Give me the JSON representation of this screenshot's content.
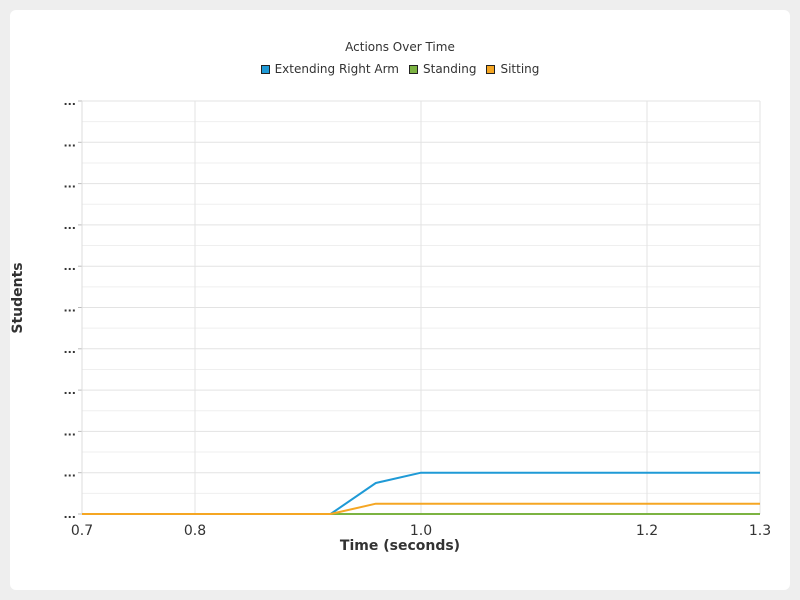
{
  "chart_data": {
    "type": "line",
    "title": "Actions Over Time",
    "xlabel": "Time (seconds)",
    "ylabel": "Students",
    "xlim": [
      0.7,
      1.3
    ],
    "ylim": [
      0,
      10
    ],
    "x_ticks": [
      0.7,
      0.8,
      1.0,
      1.2,
      1.3
    ],
    "x_tick_labels": [
      "0.7",
      "0.8",
      "1.0",
      "1.2",
      "1.3"
    ],
    "y_tick_label": "...",
    "y_tick_count": 11,
    "grid": true,
    "legend_position": "top-center",
    "x": [
      0.7,
      0.92,
      0.96,
      1.0,
      1.3
    ],
    "series": [
      {
        "name": "Extending Right Arm",
        "color": "#1f9ad6",
        "values": [
          0,
          0,
          0.75,
          1,
          1
        ]
      },
      {
        "name": "Standing",
        "color": "#7cb342",
        "values": [
          0,
          0,
          0,
          0,
          0
        ]
      },
      {
        "name": "Sitting",
        "color": "#f5a623",
        "values": [
          0,
          0,
          0.25,
          0.25,
          0.25
        ]
      }
    ]
  }
}
